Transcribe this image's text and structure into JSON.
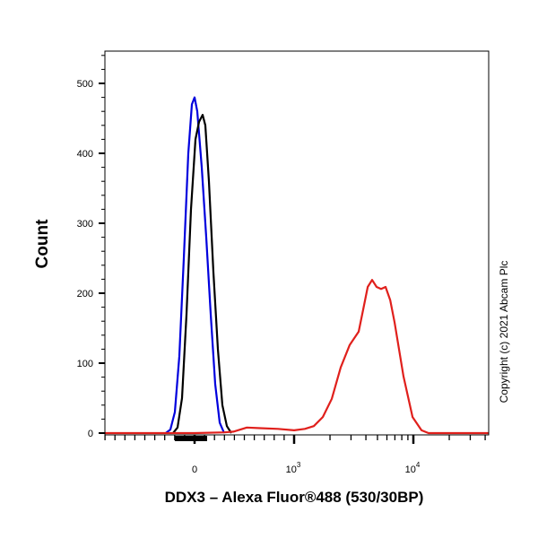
{
  "chart_data": {
    "type": "line",
    "title": "",
    "xlabel": "DDX3 – Alexa Fluor®488 (530/30BP)",
    "ylabel": "Count",
    "x_scale": "logicle",
    "xlim": [
      -900,
      42700
    ],
    "ylim": [
      0,
      550
    ],
    "x_tick_labels": [
      {
        "value": 0,
        "label": "0"
      },
      {
        "value": 1000,
        "base": "10",
        "exp": "3"
      },
      {
        "value": 10000,
        "base": "10",
        "exp": "4"
      }
    ],
    "y_ticks": [
      0,
      100,
      200,
      300,
      400,
      500
    ],
    "grid": false,
    "legend": "none",
    "annotation": "Copyright (c) 2021 Abcam Plc",
    "series": [
      {
        "color": "#0000dd",
        "points": [
          [
            -290,
            0
          ],
          [
            -243,
            5
          ],
          [
            -198,
            30
          ],
          [
            -153,
            110
          ],
          [
            -108,
            250
          ],
          [
            -63,
            400
          ],
          [
            -27,
            470
          ],
          [
            0,
            480
          ],
          [
            27,
            460
          ],
          [
            72,
            380
          ],
          [
            117,
            280
          ],
          [
            162,
            170
          ],
          [
            207,
            70
          ],
          [
            252,
            15
          ],
          [
            297,
            0
          ]
        ]
      },
      {
        "color": "#000000",
        "points": [
          [
            -216,
            0
          ],
          [
            -171,
            8
          ],
          [
            -126,
            50
          ],
          [
            -81,
            170
          ],
          [
            -36,
            320
          ],
          [
            9,
            420
          ],
          [
            45,
            445
          ],
          [
            81,
            455
          ],
          [
            108,
            440
          ],
          [
            144,
            360
          ],
          [
            189,
            230
          ],
          [
            234,
            120
          ],
          [
            279,
            40
          ],
          [
            324,
            10
          ],
          [
            369,
            0
          ]
        ]
      },
      {
        "color": "#e0201c",
        "points": [
          [
            -900,
            0
          ],
          [
            0,
            0
          ],
          [
            300,
            1
          ],
          [
            390,
            2
          ],
          [
            525,
            8
          ],
          [
            658,
            7
          ],
          [
            838,
            6
          ],
          [
            1000,
            4
          ],
          [
            1230,
            6
          ],
          [
            1463,
            10
          ],
          [
            1740,
            23
          ],
          [
            2070,
            49
          ],
          [
            2460,
            94
          ],
          [
            2925,
            126
          ],
          [
            3480,
            145
          ],
          [
            3800,
            177
          ],
          [
            4140,
            209
          ],
          [
            4510,
            219
          ],
          [
            4920,
            209
          ],
          [
            5360,
            206
          ],
          [
            5850,
            209
          ],
          [
            6400,
            190
          ],
          [
            6960,
            158
          ],
          [
            8270,
            81
          ],
          [
            9840,
            23
          ],
          [
            11700,
            4
          ],
          [
            13400,
            0
          ],
          [
            42700,
            0
          ]
        ]
      }
    ]
  }
}
